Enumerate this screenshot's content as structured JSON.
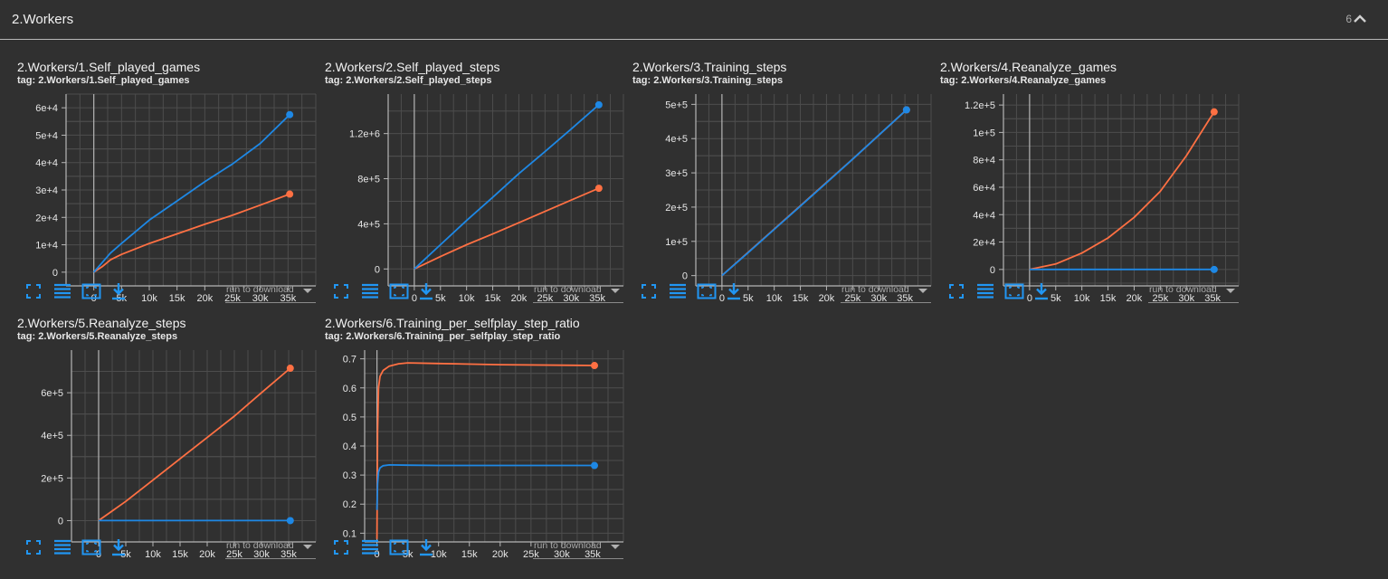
{
  "section": {
    "title": "2.Workers",
    "count": "6"
  },
  "toolbar": {
    "run_select_placeholder": "run to download"
  },
  "colors": {
    "orange": "#ff7043",
    "blue": "#1e88e5",
    "grid": "#4d4d4d",
    "axis": "#b5b5b5",
    "icon_blue": "#2196f3"
  },
  "cards": [
    {
      "title": "2.Workers/1.Self_played_games",
      "tag": "tag: 2.Workers/1.Self_played_games"
    },
    {
      "title": "2.Workers/2.Self_played_steps",
      "tag": "tag: 2.Workers/2.Self_played_steps"
    },
    {
      "title": "2.Workers/3.Training_steps",
      "tag": "tag: 2.Workers/3.Training_steps"
    },
    {
      "title": "2.Workers/4.Reanalyze_games",
      "tag": "tag: 2.Workers/4.Reanalyze_games"
    },
    {
      "title": "2.Workers/5.Reanalyze_steps",
      "tag": "tag: 2.Workers/5.Reanalyze_steps"
    },
    {
      "title": "2.Workers/6.Training_per_selfplay_step_ratio",
      "tag": "tag: 2.Workers/6.Training_per_selfplay_step_ratio"
    }
  ],
  "chart_data": [
    {
      "type": "line",
      "title": "2.Workers/1.Self_played_games",
      "xlim": [
        -5000,
        40000
      ],
      "ylim": [
        -5000,
        65000
      ],
      "x_ticks": [
        0,
        5000,
        10000,
        15000,
        20000,
        25000,
        30000,
        35000
      ],
      "x_tick_labels": [
        "0",
        "5k",
        "10k",
        "15k",
        "20k",
        "25k",
        "30k",
        "35k"
      ],
      "y_ticks": [
        0,
        10000,
        20000,
        30000,
        40000,
        50000,
        60000
      ],
      "y_tick_labels": [
        "0",
        "1e+4",
        "2e+4",
        "3e+4",
        "4e+4",
        "5e+4",
        "6e+4"
      ],
      "series": [
        {
          "name": "orange-run",
          "color": "#ff7043",
          "x": [
            0,
            1500,
            3000,
            5000,
            10000,
            15000,
            20000,
            25000,
            30000,
            35300
          ],
          "y": [
            0,
            2000,
            4500,
            6500,
            10500,
            14000,
            17500,
            20800,
            24500,
            28500
          ]
        },
        {
          "name": "blue-run",
          "color": "#1e88e5",
          "x": [
            0,
            1500,
            3000,
            5000,
            10000,
            15000,
            20000,
            25000,
            30000,
            35300
          ],
          "y": [
            0,
            3500,
            7000,
            10500,
            19000,
            26000,
            33000,
            39500,
            47000,
            57500
          ]
        }
      ]
    },
    {
      "type": "line",
      "title": "2.Workers/2.Self_played_steps",
      "xlim": [
        -5000,
        40000
      ],
      "ylim": [
        -150000,
        1550000
      ],
      "x_ticks": [
        0,
        5000,
        10000,
        15000,
        20000,
        25000,
        30000,
        35000
      ],
      "x_tick_labels": [
        "0",
        "5k",
        "10k",
        "15k",
        "20k",
        "25k",
        "30k",
        "35k"
      ],
      "y_ticks": [
        0,
        400000,
        800000,
        1200000
      ],
      "y_tick_labels": [
        "0",
        "4e+5",
        "8e+5",
        "1.2e+6"
      ],
      "series": [
        {
          "name": "orange-run",
          "color": "#ff7043",
          "x": [
            0,
            5000,
            10000,
            15000,
            20000,
            25000,
            30000,
            35300
          ],
          "y": [
            0,
            110000,
            215000,
            310000,
            410000,
            510000,
            610000,
            715000
          ]
        },
        {
          "name": "blue-run",
          "color": "#1e88e5",
          "x": [
            0,
            5000,
            10000,
            15000,
            20000,
            25000,
            30000,
            35300
          ],
          "y": [
            0,
            215000,
            430000,
            635000,
            845000,
            1040000,
            1240000,
            1455000
          ]
        }
      ]
    },
    {
      "type": "line",
      "title": "2.Workers/3.Training_steps",
      "xlim": [
        -5000,
        40000
      ],
      "ylim": [
        -30000,
        530000
      ],
      "x_ticks": [
        0,
        5000,
        10000,
        15000,
        20000,
        25000,
        30000,
        35000
      ],
      "x_tick_labels": [
        "0",
        "5k",
        "10k",
        "15k",
        "20k",
        "25k",
        "30k",
        "35k"
      ],
      "y_ticks": [
        0,
        100000,
        200000,
        300000,
        400000,
        500000
      ],
      "y_tick_labels": [
        "0",
        "1e+5",
        "2e+5",
        "3e+5",
        "4e+5",
        "5e+5"
      ],
      "series": [
        {
          "name": "orange-run",
          "color": "#ff7043",
          "x": [
            0,
            5000,
            10000,
            15000,
            20000,
            25000,
            30000,
            35300
          ],
          "y": [
            0,
            68000,
            136000,
            204000,
            272000,
            340000,
            410000,
            484000
          ]
        },
        {
          "name": "blue-run",
          "color": "#1e88e5",
          "x": [
            0,
            5000,
            10000,
            15000,
            20000,
            25000,
            30000,
            35300
          ],
          "y": [
            0,
            67000,
            135000,
            203000,
            271000,
            340000,
            410000,
            484000
          ]
        }
      ]
    },
    {
      "type": "line",
      "title": "2.Workers/4.Reanalyze_games",
      "xlim": [
        -5000,
        40000
      ],
      "ylim": [
        -12000,
        128000
      ],
      "x_ticks": [
        0,
        5000,
        10000,
        15000,
        20000,
        25000,
        30000,
        35000
      ],
      "x_tick_labels": [
        "0",
        "5k",
        "10k",
        "15k",
        "20k",
        "25k",
        "30k",
        "35k"
      ],
      "y_ticks": [
        0,
        20000,
        40000,
        60000,
        80000,
        100000,
        120000
      ],
      "y_tick_labels": [
        "0",
        "2e+4",
        "4e+4",
        "6e+4",
        "8e+4",
        "1e+5",
        "1.2e+5"
      ],
      "series": [
        {
          "name": "orange-run",
          "color": "#ff7043",
          "x": [
            0,
            5000,
            10000,
            15000,
            20000,
            25000,
            30000,
            35300
          ],
          "y": [
            0,
            4000,
            12000,
            23000,
            38000,
            57000,
            83000,
            115000
          ]
        },
        {
          "name": "blue-run",
          "color": "#1e88e5",
          "x": [
            0,
            35300
          ],
          "y": [
            0,
            0
          ]
        }
      ]
    },
    {
      "type": "line",
      "title": "2.Workers/5.Reanalyze_steps",
      "xlim": [
        -5000,
        40000
      ],
      "ylim": [
        -100000,
        800000
      ],
      "x_ticks": [
        0,
        5000,
        10000,
        15000,
        20000,
        25000,
        30000,
        35000
      ],
      "x_tick_labels": [
        "0",
        "5k",
        "10k",
        "15k",
        "20k",
        "25k",
        "30k",
        "35k"
      ],
      "y_ticks": [
        0,
        200000,
        400000,
        600000
      ],
      "y_tick_labels": [
        "0",
        "2e+5",
        "4e+5",
        "6e+5"
      ],
      "series": [
        {
          "name": "orange-run",
          "color": "#ff7043",
          "x": [
            0,
            5000,
            10000,
            15000,
            20000,
            25000,
            30000,
            35300
          ],
          "y": [
            0,
            90000,
            190000,
            290000,
            390000,
            490000,
            600000,
            715000
          ]
        },
        {
          "name": "blue-run",
          "color": "#1e88e5",
          "x": [
            0,
            35300
          ],
          "y": [
            0,
            0
          ]
        }
      ]
    },
    {
      "type": "line",
      "title": "2.Workers/6.Training_per_selfplay_step_ratio",
      "xlim": [
        -2000,
        40000
      ],
      "ylim": [
        0.07,
        0.73
      ],
      "x_ticks": [
        0,
        5000,
        10000,
        15000,
        20000,
        25000,
        30000,
        35000
      ],
      "x_tick_labels": [
        "0",
        "5k",
        "10k",
        "15k",
        "20k",
        "25k",
        "30k",
        "35k"
      ],
      "y_ticks": [
        0.1,
        0.2,
        0.3,
        0.4,
        0.5,
        0.6,
        0.7
      ],
      "y_tick_labels": [
        "0.1",
        "0.2",
        "0.3",
        "0.4",
        "0.5",
        "0.6",
        "0.7"
      ],
      "series": [
        {
          "name": "orange-run",
          "color": "#ff7043",
          "x": [
            0,
            100,
            250,
            500,
            1000,
            2000,
            3500,
            5000,
            10000,
            20000,
            30000,
            35300
          ],
          "y": [
            0.08,
            0.45,
            0.6,
            0.64,
            0.66,
            0.675,
            0.683,
            0.686,
            0.684,
            0.68,
            0.678,
            0.677
          ]
        },
        {
          "name": "blue-run",
          "color": "#1e88e5",
          "x": [
            0,
            100,
            250,
            500,
            1000,
            2000,
            5000,
            10000,
            20000,
            30000,
            35300
          ],
          "y": [
            0.18,
            0.27,
            0.31,
            0.325,
            0.332,
            0.335,
            0.334,
            0.333,
            0.333,
            0.333,
            0.333
          ]
        }
      ]
    }
  ]
}
